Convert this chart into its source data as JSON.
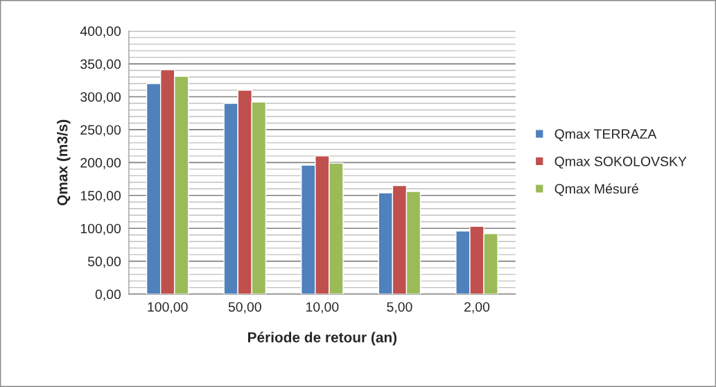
{
  "chart_data": {
    "type": "bar",
    "xlabel": "Période de retour (an)",
    "ylabel": "Qmax (m3/s)",
    "categories": [
      "100,00",
      "50,00",
      "10,00",
      "5,00",
      "2,00"
    ],
    "series": [
      {
        "name": "Qmax TERRAZA",
        "color": "#4f81bd",
        "values": [
          320,
          290,
          196,
          154,
          96
        ]
      },
      {
        "name": "Qmax SOKOLOVSKY",
        "color": "#c0504d",
        "values": [
          341,
          310,
          210,
          165,
          103
        ]
      },
      {
        "name": "Qmax Mésuré",
        "color": "#9bbb59",
        "values": [
          331,
          292,
          199,
          156,
          92
        ]
      }
    ],
    "ylim": [
      0,
      400
    ],
    "yticks": [
      {
        "value": 0,
        "label": "0,00"
      },
      {
        "value": 10,
        "label": null
      },
      {
        "value": 20,
        "label": null
      },
      {
        "value": 30,
        "label": null
      },
      {
        "value": 40,
        "label": null
      },
      {
        "value": 50,
        "label": "50,00"
      },
      {
        "value": 60,
        "label": null
      },
      {
        "value": 70,
        "label": null
      },
      {
        "value": 80,
        "label": null
      },
      {
        "value": 90,
        "label": null
      },
      {
        "value": 100,
        "label": "100,00"
      },
      {
        "value": 110,
        "label": null
      },
      {
        "value": 120,
        "label": null
      },
      {
        "value": 130,
        "label": null
      },
      {
        "value": 140,
        "label": null
      },
      {
        "value": 150,
        "label": "150,00"
      },
      {
        "value": 160,
        "label": null
      },
      {
        "value": 170,
        "label": null
      },
      {
        "value": 180,
        "label": null
      },
      {
        "value": 190,
        "label": null
      },
      {
        "value": 200,
        "label": "200,00"
      },
      {
        "value": 210,
        "label": null
      },
      {
        "value": 220,
        "label": null
      },
      {
        "value": 230,
        "label": null
      },
      {
        "value": 240,
        "label": null
      },
      {
        "value": 250,
        "label": "250,00"
      },
      {
        "value": 260,
        "label": null
      },
      {
        "value": 270,
        "label": null
      },
      {
        "value": 280,
        "label": null
      },
      {
        "value": 290,
        "label": null
      },
      {
        "value": 300,
        "label": "300,00"
      },
      {
        "value": 310,
        "label": null
      },
      {
        "value": 320,
        "label": null
      },
      {
        "value": 330,
        "label": null
      },
      {
        "value": 340,
        "label": null
      },
      {
        "value": 350,
        "label": "350,00"
      },
      {
        "value": 360,
        "label": null
      },
      {
        "value": 370,
        "label": null
      },
      {
        "value": 380,
        "label": null
      },
      {
        "value": 390,
        "label": null
      },
      {
        "value": 400,
        "label": "400,00"
      }
    ],
    "grid": "y",
    "legend": "right"
  }
}
